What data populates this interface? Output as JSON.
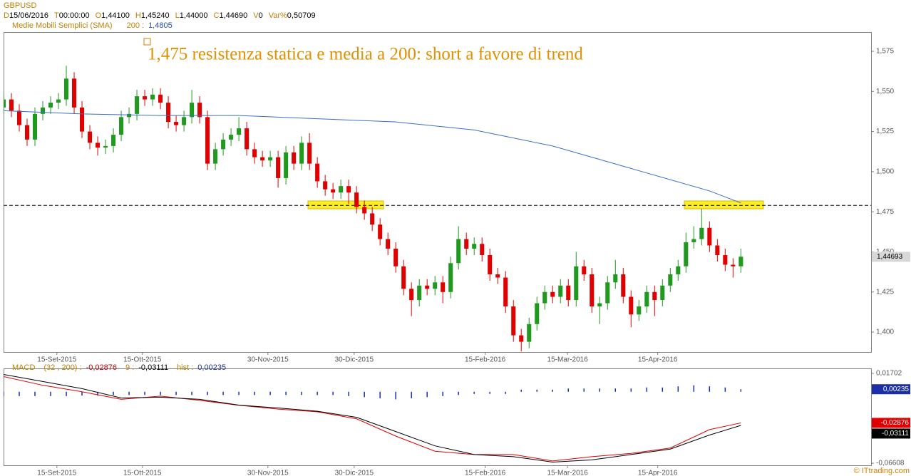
{
  "header": {
    "symbol": "GBPUSD",
    "fields": [
      {
        "key": "D",
        "value": "15/06/2016"
      },
      {
        "key": "T",
        "value": "00:00:00"
      },
      {
        "key": "O",
        "value": "1,44100"
      },
      {
        "key": "H",
        "value": "1,45240"
      },
      {
        "key": "L",
        "value": "1,44000"
      },
      {
        "key": "C",
        "value": "1,44690"
      },
      {
        "key": "V",
        "value": "0"
      },
      {
        "key": "Var%",
        "value": "0,50709"
      }
    ],
    "copyright": "© ITtrading.com"
  },
  "chart_data": [
    {
      "type": "candlestick",
      "annotation": "1,475 resistenza statica e media a 200: short a favore di trend",
      "up_color": "#1f9a1f",
      "down_color": "#e00000",
      "xlim": [
        0,
        110.6
      ],
      "ylim": [
        1.3876,
        1.587
      ],
      "xticks": [
        {
          "value": 6.8,
          "label": "15-Set-2015"
        },
        {
          "value": 17.7,
          "label": "15-Ott-2015"
        },
        {
          "value": 33.7,
          "label": "30-Nov-2015"
        },
        {
          "value": 44.7,
          "label": "30-Dic-2015"
        },
        {
          "value": 61.4,
          "label": "15-Feb-2016"
        },
        {
          "value": 71.9,
          "label": "15-Mar-2016"
        },
        {
          "value": 83.4,
          "label": "15-Apr-2016"
        }
      ],
      "yticks": [
        {
          "value": 1.4,
          "label": "1,400"
        },
        {
          "value": 1.425,
          "label": "1,425"
        },
        {
          "value": 1.45,
          "label": "1,450"
        },
        {
          "value": 1.475,
          "label": "1,475"
        },
        {
          "value": 1.5,
          "label": "1,500"
        },
        {
          "value": 1.525,
          "label": "1,525"
        },
        {
          "value": 1.55,
          "label": "1,550"
        },
        {
          "value": 1.575,
          "label": "1,575"
        }
      ],
      "hline": 1.479,
      "last_price": {
        "value": 1.44693,
        "label": "1,44693"
      },
      "candles": {
        "open": [
          1.54,
          1.545,
          1.538,
          1.529,
          1.52,
          1.536,
          1.54,
          1.543,
          1.545,
          1.558,
          1.54,
          1.525,
          1.518,
          1.515,
          1.516,
          1.523,
          1.534,
          1.536,
          1.547,
          1.545,
          1.548,
          1.543,
          1.531,
          1.529,
          1.534,
          1.543,
          1.534,
          1.505,
          1.514,
          1.52,
          1.523,
          1.527,
          1.514,
          1.509,
          1.507,
          1.509,
          1.496,
          1.512,
          1.505,
          1.518,
          1.505,
          1.494,
          1.489,
          1.487,
          1.491,
          1.487,
          1.478,
          1.474,
          1.467,
          1.458,
          1.452,
          1.441,
          1.427,
          1.42,
          1.429,
          1.427,
          1.431,
          1.425,
          1.443,
          1.458,
          1.452,
          1.455,
          1.448,
          1.436,
          1.434,
          1.416,
          1.398,
          1.394,
          1.405,
          1.418,
          1.425,
          1.422,
          1.429,
          1.42,
          1.441,
          1.436,
          1.416,
          1.418,
          1.431,
          1.436,
          1.422,
          1.411,
          1.416,
          1.425,
          1.42,
          1.429,
          1.436,
          1.441,
          1.456,
          1.458,
          1.465,
          1.454,
          1.448,
          1.442,
          1.441
        ],
        "high": [
          1.549,
          1.549,
          1.542,
          1.533,
          1.54,
          1.544,
          1.547,
          1.549,
          1.566,
          1.562,
          1.544,
          1.529,
          1.522,
          1.52,
          1.527,
          1.538,
          1.54,
          1.551,
          1.551,
          1.552,
          1.552,
          1.547,
          1.535,
          1.538,
          1.551,
          1.547,
          1.538,
          1.518,
          1.524,
          1.527,
          1.534,
          1.531,
          1.518,
          1.513,
          1.513,
          1.513,
          1.516,
          1.516,
          1.522,
          1.524,
          1.509,
          1.498,
          1.493,
          1.495,
          1.495,
          1.491,
          1.482,
          1.478,
          1.471,
          1.462,
          1.456,
          1.445,
          1.431,
          1.433,
          1.433,
          1.435,
          1.435,
          1.447,
          1.466,
          1.462,
          1.459,
          1.459,
          1.452,
          1.44,
          1.438,
          1.42,
          1.402,
          1.409,
          1.422,
          1.429,
          1.429,
          1.433,
          1.433,
          1.45,
          1.445,
          1.44,
          1.422,
          1.435,
          1.445,
          1.44,
          1.426,
          1.42,
          1.429,
          1.429,
          1.433,
          1.44,
          1.445,
          1.462,
          1.466,
          1.477,
          1.469,
          1.458,
          1.452,
          1.446,
          1.452
        ],
        "low": [
          1.536,
          1.534,
          1.525,
          1.516,
          1.516,
          1.532,
          1.536,
          1.539,
          1.541,
          1.536,
          1.521,
          1.514,
          1.51,
          1.511,
          1.512,
          1.519,
          1.53,
          1.532,
          1.541,
          1.541,
          1.539,
          1.527,
          1.525,
          1.525,
          1.53,
          1.53,
          1.501,
          1.501,
          1.51,
          1.516,
          1.519,
          1.51,
          1.505,
          1.503,
          1.503,
          1.49,
          1.492,
          1.501,
          1.501,
          1.501,
          1.49,
          1.485,
          1.483,
          1.483,
          1.48,
          1.474,
          1.47,
          1.463,
          1.454,
          1.448,
          1.437,
          1.423,
          1.41,
          1.416,
          1.423,
          1.423,
          1.418,
          1.421,
          1.439,
          1.448,
          1.448,
          1.444,
          1.432,
          1.43,
          1.412,
          1.394,
          1.388,
          1.39,
          1.401,
          1.414,
          1.418,
          1.418,
          1.416,
          1.416,
          1.432,
          1.412,
          1.405,
          1.414,
          1.427,
          1.418,
          1.403,
          1.407,
          1.412,
          1.41,
          1.416,
          1.425,
          1.432,
          1.437,
          1.452,
          1.454,
          1.45,
          1.444,
          1.438,
          1.434,
          1.437
        ],
        "close": [
          1.545,
          1.538,
          1.529,
          1.52,
          1.536,
          1.54,
          1.543,
          1.545,
          1.558,
          1.54,
          1.525,
          1.518,
          1.515,
          1.516,
          1.523,
          1.534,
          1.536,
          1.547,
          1.545,
          1.548,
          1.543,
          1.531,
          1.529,
          1.534,
          1.543,
          1.534,
          1.505,
          1.514,
          1.52,
          1.523,
          1.527,
          1.514,
          1.509,
          1.507,
          1.509,
          1.496,
          1.512,
          1.505,
          1.518,
          1.505,
          1.494,
          1.489,
          1.487,
          1.491,
          1.487,
          1.478,
          1.474,
          1.467,
          1.458,
          1.452,
          1.441,
          1.427,
          1.42,
          1.429,
          1.427,
          1.431,
          1.425,
          1.443,
          1.458,
          1.452,
          1.455,
          1.448,
          1.436,
          1.434,
          1.416,
          1.398,
          1.394,
          1.405,
          1.418,
          1.425,
          1.422,
          1.429,
          1.42,
          1.441,
          1.436,
          1.416,
          1.418,
          1.431,
          1.436,
          1.422,
          1.411,
          1.416,
          1.425,
          1.42,
          1.429,
          1.436,
          1.441,
          1.456,
          1.458,
          1.465,
          1.454,
          1.448,
          1.442,
          1.441,
          1.447
        ]
      },
      "sma": {
        "name": "Medie Mobili Semplici (SMA)",
        "period_label": "200 :",
        "value_label": "1,4805",
        "color": "#3a6fc8",
        "x": [
          0,
          10,
          20,
          30,
          40,
          50,
          60,
          70,
          80,
          90,
          94
        ],
        "values": [
          1.538,
          1.536,
          1.535,
          1.535,
          1.533,
          1.531,
          1.526,
          1.516,
          1.502,
          1.488,
          1.4805
        ]
      }
    },
    {
      "type": "macd",
      "title": "MACD",
      "xlim": [
        0,
        110.6
      ],
      "ylim": [
        -0.068,
        0.0216
      ],
      "yticks": [
        {
          "value": 0.01702,
          "label": "0,01702"
        },
        {
          "value": -0.06608,
          "label": "-0,06608"
        }
      ],
      "series": [
        {
          "name": "(32 , 200) :",
          "color": "#e00000",
          "value_label": "-0,02876",
          "x": [
            0,
            5,
            10,
            15,
            20,
            25,
            30,
            35,
            40,
            45,
            50,
            55,
            60,
            65,
            70,
            75,
            80,
            85,
            90,
            94
          ],
          "values": [
            0.014,
            0.006,
            0.0,
            -0.007,
            -0.004,
            -0.008,
            -0.0125,
            -0.016,
            -0.0185,
            -0.025,
            -0.041,
            -0.055,
            -0.058,
            -0.058,
            -0.064,
            -0.06,
            -0.057,
            -0.052,
            -0.035,
            -0.02876
          ]
        },
        {
          "name": "9 :",
          "color": "#000000",
          "value_label": "-0,03111",
          "x": [
            0,
            5,
            10,
            15,
            20,
            25,
            30,
            35,
            40,
            45,
            50,
            55,
            60,
            65,
            70,
            75,
            80,
            85,
            90,
            94
          ],
          "values": [
            0.016,
            0.0095,
            0.0029,
            -0.0057,
            -0.005,
            -0.007,
            -0.0123,
            -0.015,
            -0.018,
            -0.0236,
            -0.0368,
            -0.05,
            -0.058,
            -0.06,
            -0.065,
            -0.063,
            -0.058,
            -0.053,
            -0.04,
            -0.03111
          ]
        }
      ],
      "hist": {
        "name": "hist :",
        "color": "#1c2fa8",
        "value_label": "0,00235",
        "x": [
          0,
          2,
          4,
          6,
          8,
          10,
          12,
          14,
          16,
          18,
          20,
          22,
          24,
          26,
          28,
          30,
          32,
          34,
          36,
          38,
          40,
          42,
          44,
          46,
          48,
          50,
          52,
          54,
          56,
          58,
          60,
          62,
          64,
          66,
          68,
          70,
          72,
          74,
          76,
          78,
          80,
          82,
          84,
          86,
          88,
          90,
          92,
          94
        ],
        "values": [
          -0.004,
          -0.004,
          -0.004,
          -0.004,
          -0.004,
          -0.0035,
          -0.0035,
          -0.003,
          -0.003,
          -0.003,
          -0.003,
          -0.003,
          -0.003,
          -0.003,
          -0.003,
          -0.003,
          -0.003,
          -0.003,
          -0.003,
          -0.003,
          -0.003,
          -0.003,
          -0.004,
          -0.005,
          -0.006,
          -0.007,
          -0.006,
          -0.005,
          -0.004,
          -0.003,
          -0.002,
          -0.002,
          -0.002,
          0.002,
          0.002,
          0.002,
          0.003,
          0.003,
          0.003,
          0.003,
          0.003,
          0.004,
          0.004,
          0.005,
          0.006,
          0.005,
          0.004,
          0.00235
        ]
      }
    }
  ]
}
